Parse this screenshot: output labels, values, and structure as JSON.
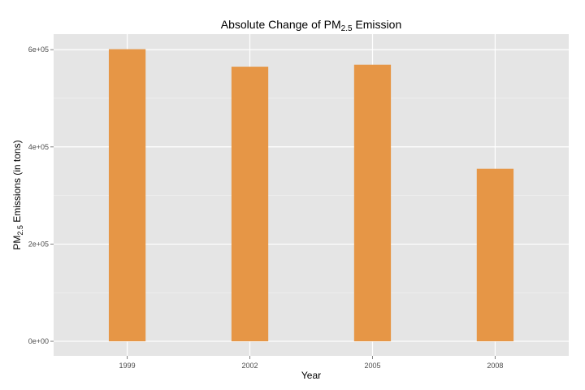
{
  "chart_data": {
    "type": "bar",
    "title": {
      "main": "Absolute Change of PM",
      "sub": "2.5",
      "suffix": " Emission"
    },
    "xlabel": "Year",
    "ylabel": {
      "main": "PM",
      "sub": "2.5",
      "suffix": " Emissions (in tons)"
    },
    "categories": [
      "1999",
      "2002",
      "2005",
      "2008"
    ],
    "values": [
      601000,
      565000,
      569000,
      355000
    ],
    "ylim": [
      -30000,
      632000
    ],
    "yticks": [
      {
        "value": 0,
        "label": "0e+00"
      },
      {
        "value": 200000,
        "label": "2e+05"
      },
      {
        "value": 400000,
        "label": "4e+05"
      },
      {
        "value": 600000,
        "label": "6e+05"
      }
    ],
    "bar_color": "#E69646",
    "panel_color": "#E5E5E5",
    "grid": true
  }
}
